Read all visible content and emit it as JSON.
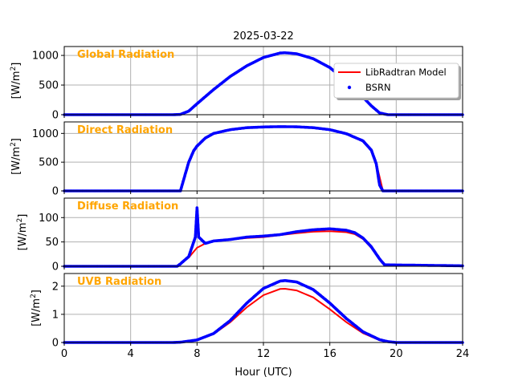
{
  "figure": {
    "title": "2025-03-22",
    "xlabel": "Hour (UTC)",
    "x_ticks": [
      "0",
      "4",
      "8",
      "12",
      "16",
      "20",
      "24"
    ],
    "xlim": [
      0,
      24
    ],
    "grid": true
  },
  "legend": {
    "placement": "top-right",
    "entries": [
      {
        "label": "LibRadtran Model",
        "color": "#ff0000",
        "kind": "line"
      },
      {
        "label": "BSRN",
        "color": "#0000ff",
        "kind": "marker"
      }
    ]
  },
  "colors": {
    "model": "#ff0000",
    "bsrn": "#0000ff",
    "panel_label": "#ffa500",
    "grid": "#b0b0b0"
  },
  "chart_data": [
    {
      "type": "line",
      "title": "Global Radiation",
      "ylabel_main": "[W/m",
      "ylabel_sup": "2",
      "ylabel_close": "]",
      "ylim": [
        0,
        1150
      ],
      "y_ticks": [
        0,
        500,
        1000
      ],
      "series": [
        {
          "name": "LibRadtran Model",
          "x": [
            0,
            6.5,
            7,
            7.5,
            8,
            9,
            10,
            11,
            12,
            13,
            13.3,
            14,
            15,
            16,
            17,
            18,
            18.5,
            19,
            19.5,
            24
          ],
          "y": [
            0,
            0,
            5,
            60,
            180,
            420,
            640,
            820,
            960,
            1040,
            1045,
            1025,
            940,
            790,
            560,
            290,
            150,
            30,
            0,
            0
          ]
        },
        {
          "name": "BSRN",
          "x": [
            0,
            6.5,
            7,
            7.5,
            8,
            9,
            10,
            11,
            12,
            13,
            13.3,
            14,
            15,
            16,
            17,
            18,
            18.5,
            19,
            19.5,
            24
          ],
          "y": [
            0,
            0,
            5,
            60,
            185,
            425,
            645,
            825,
            965,
            1040,
            1045,
            1028,
            945,
            795,
            565,
            295,
            150,
            30,
            0,
            0
          ]
        }
      ]
    },
    {
      "type": "line",
      "title": "Direct Radiation",
      "ylabel_main": "[W/m",
      "ylabel_sup": "2",
      "ylabel_close": "]",
      "ylim": [
        0,
        1200
      ],
      "y_ticks": [
        0,
        500,
        1000
      ],
      "series": [
        {
          "name": "LibRadtran Model",
          "x": [
            0,
            7,
            7.2,
            7.5,
            7.8,
            8,
            8.5,
            9,
            10,
            11,
            12,
            13,
            14,
            15,
            16,
            17,
            18,
            18.5,
            18.8,
            19,
            19.2,
            24
          ],
          "y": [
            0,
            0,
            180,
            480,
            680,
            770,
            910,
            990,
            1060,
            1095,
            1110,
            1115,
            1112,
            1095,
            1060,
            990,
            860,
            700,
            480,
            240,
            0,
            0
          ]
        },
        {
          "name": "BSRN",
          "x": [
            0,
            7,
            7.2,
            7.5,
            7.8,
            8,
            8.5,
            9,
            10,
            11,
            12,
            13,
            14,
            15,
            16,
            17,
            18,
            18.5,
            18.8,
            19,
            19.2,
            24
          ],
          "y": [
            0,
            0,
            200,
            500,
            700,
            780,
            920,
            1000,
            1065,
            1100,
            1112,
            1118,
            1115,
            1100,
            1065,
            995,
            870,
            710,
            470,
            100,
            0,
            0
          ]
        }
      ]
    },
    {
      "type": "line",
      "title": "Diffuse Radiation",
      "ylabel_main": "[W/m",
      "ylabel_sup": "2",
      "ylabel_close": "]",
      "ylim": [
        0,
        140
      ],
      "y_ticks": [
        0,
        50,
        100
      ],
      "series": [
        {
          "name": "LibRadtran Model",
          "x": [
            0,
            6.8,
            7,
            7.5,
            8,
            8.5,
            9,
            10,
            11,
            12,
            13,
            14,
            15,
            16,
            17,
            17.5,
            18,
            18.5,
            19,
            19.3,
            24
          ],
          "y": [
            0,
            0,
            5,
            18,
            38,
            47,
            51,
            55,
            58,
            60,
            64,
            68,
            71,
            72,
            70,
            66,
            56,
            38,
            15,
            3,
            0
          ]
        },
        {
          "name": "BSRN",
          "x": [
            0,
            6.8,
            7,
            7.5,
            7.9,
            8,
            8.1,
            8.5,
            9,
            10,
            11,
            12,
            13,
            14,
            15,
            16,
            17,
            17.5,
            18,
            18.5,
            19,
            19.3,
            24
          ],
          "y": [
            0,
            0,
            5,
            20,
            60,
            120,
            60,
            47,
            52,
            55,
            60,
            62,
            65,
            71,
            75,
            77,
            74,
            69,
            58,
            40,
            15,
            3,
            1
          ]
        }
      ]
    },
    {
      "type": "line",
      "title": "UVB Radiation",
      "ylabel_main": "[W/m",
      "ylabel_sup": "2",
      "ylabel_close": "]",
      "ylim": [
        0,
        2.45
      ],
      "y_ticks": [
        0,
        1,
        2
      ],
      "series": [
        {
          "name": "LibRadtran Model",
          "x": [
            0,
            6.5,
            7,
            8,
            9,
            10,
            11,
            12,
            13,
            13.3,
            14,
            15,
            16,
            17,
            18,
            19,
            19.5,
            20,
            24
          ],
          "y": [
            0,
            0,
            0.01,
            0.08,
            0.3,
            0.72,
            1.25,
            1.68,
            1.9,
            1.91,
            1.85,
            1.6,
            1.18,
            0.72,
            0.33,
            0.08,
            0.02,
            0,
            0
          ]
        },
        {
          "name": "BSRN",
          "x": [
            0,
            6.5,
            7,
            8,
            9,
            10,
            11,
            12,
            13,
            13.3,
            14,
            15,
            16,
            17,
            18,
            19,
            19.5,
            20,
            24
          ],
          "y": [
            0,
            0,
            0.01,
            0.09,
            0.32,
            0.78,
            1.4,
            1.92,
            2.18,
            2.2,
            2.15,
            1.88,
            1.4,
            0.85,
            0.38,
            0.1,
            0.03,
            0,
            0
          ]
        }
      ]
    }
  ]
}
